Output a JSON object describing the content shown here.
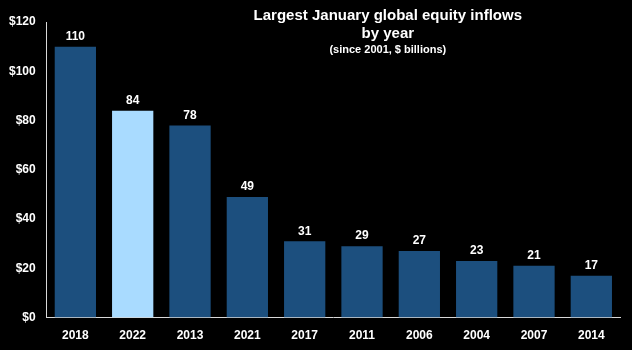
{
  "chart_data": {
    "type": "bar",
    "title": [
      "Largest January global equity inflows",
      "by year"
    ],
    "subtitle": "(since 2001, $ billions)",
    "categories": [
      "2018",
      "2022",
      "2013",
      "2021",
      "2017",
      "2011",
      "2006",
      "2004",
      "2007",
      "2014"
    ],
    "values": [
      110,
      84,
      78,
      49,
      31,
      29,
      27,
      23,
      21,
      17
    ],
    "colors": [
      "#1c4f7e",
      "#a9dbff",
      "#1c4f7e",
      "#1c4f7e",
      "#1c4f7e",
      "#1c4f7e",
      "#1c4f7e",
      "#1c4f7e",
      "#1c4f7e",
      "#1c4f7e"
    ],
    "ylim": [
      0,
      120
    ],
    "yticks": [
      {
        "value": 0,
        "label": "$0"
      },
      {
        "value": 20,
        "label": "$20"
      },
      {
        "value": 40,
        "label": "$40"
      },
      {
        "value": 60,
        "label": "$60"
      },
      {
        "value": 80,
        "label": "$80"
      },
      {
        "value": 100,
        "label": "$100"
      },
      {
        "value": 120,
        "label": "$120"
      }
    ],
    "grid": false,
    "data_labels": true
  }
}
